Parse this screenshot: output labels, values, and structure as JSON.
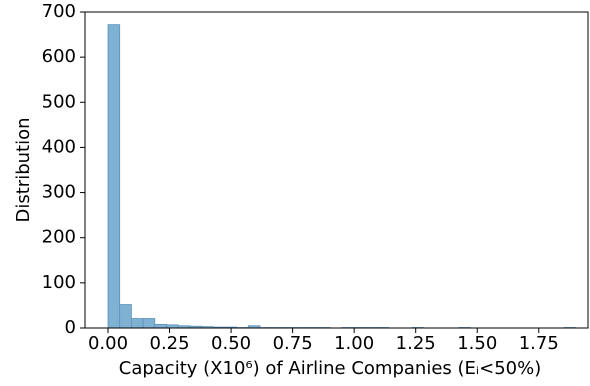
{
  "chart_data": {
    "type": "histogram",
    "x_label": "Capacity (X10⁶) of Airline Companies (Eᵢ<50%)",
    "y_label": "Distribution",
    "bins": [
      0,
      0.0475,
      0.095,
      0.1425,
      0.19,
      0.2375,
      0.285,
      0.3325,
      0.38,
      0.4275,
      0.475,
      0.5225,
      0.57,
      0.6175,
      0.665,
      0.7125,
      0.76,
      0.8075,
      0.855,
      0.9025,
      0.95,
      0.9975,
      1.045,
      1.0925,
      1.14,
      1.1875,
      1.235,
      1.2825,
      1.33,
      1.3775,
      1.425,
      1.4725,
      1.52,
      1.5675,
      1.615,
      1.6625,
      1.71,
      1.7575,
      1.805,
      1.8525,
      1.9
    ],
    "values": [
      672,
      52,
      21,
      21,
      8,
      7,
      5,
      4,
      3,
      2,
      2,
      1,
      5,
      1,
      1,
      1,
      1,
      1,
      1,
      0,
      1,
      1,
      1,
      1,
      0,
      0,
      1,
      0,
      0,
      0,
      1,
      0,
      0,
      0,
      0,
      0,
      0,
      0,
      0,
      1
    ],
    "color": "#7fb1d3",
    "edge_color": "#5b93bb",
    "xlim": [
      -0.0935,
      1.95
    ],
    "xticks": [
      {
        "value": 0,
        "label": "0.00"
      },
      {
        "value": 0.25,
        "label": "0.25"
      },
      {
        "value": 0.5,
        "label": "0.50"
      },
      {
        "value": 0.75,
        "label": "0.75"
      },
      {
        "value": 1.0,
        "label": "1.00"
      },
      {
        "value": 1.25,
        "label": "1.25"
      },
      {
        "value": 1.5,
        "label": "1.50"
      },
      {
        "value": 1.75,
        "label": "1.75"
      }
    ],
    "ylim": [
      0,
      700
    ],
    "yticks": [
      0,
      100,
      200,
      300,
      400,
      500,
      600,
      700
    ],
    "grid": false
  }
}
